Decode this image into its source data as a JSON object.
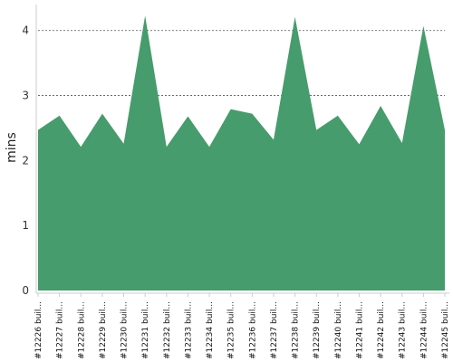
{
  "chart_data": {
    "type": "area",
    "ylabel": "mins",
    "xlabel": "",
    "ylim": [
      0,
      4.4
    ],
    "yticks": [
      "0",
      "1",
      "2",
      "3",
      "4"
    ],
    "grid": true,
    "fill_color": "#469c6c",
    "grid_color": "#555555",
    "categories": [
      "#12226 buil...",
      "#12227 buil...",
      "#12228 buil...",
      "#12229 buil...",
      "#12230 buil...",
      "#12231 buil...",
      "#12232 buil...",
      "#12233 buil...",
      "#12234 buil...",
      "#12235 buil...",
      "#12236 buil...",
      "#12237 buil...",
      "#12238 buil...",
      "#12239 buil...",
      "#12240 buil...",
      "#12241 buil...",
      "#12242 buil...",
      "#12243 buil...",
      "#12244 buil...",
      "#12245 buil..."
    ],
    "values": [
      2.47,
      2.69,
      2.21,
      2.72,
      2.26,
      4.23,
      2.21,
      2.68,
      2.21,
      2.79,
      2.72,
      2.32,
      4.21,
      2.47,
      2.69,
      2.25,
      2.84,
      2.27,
      4.07,
      2.47
    ]
  }
}
